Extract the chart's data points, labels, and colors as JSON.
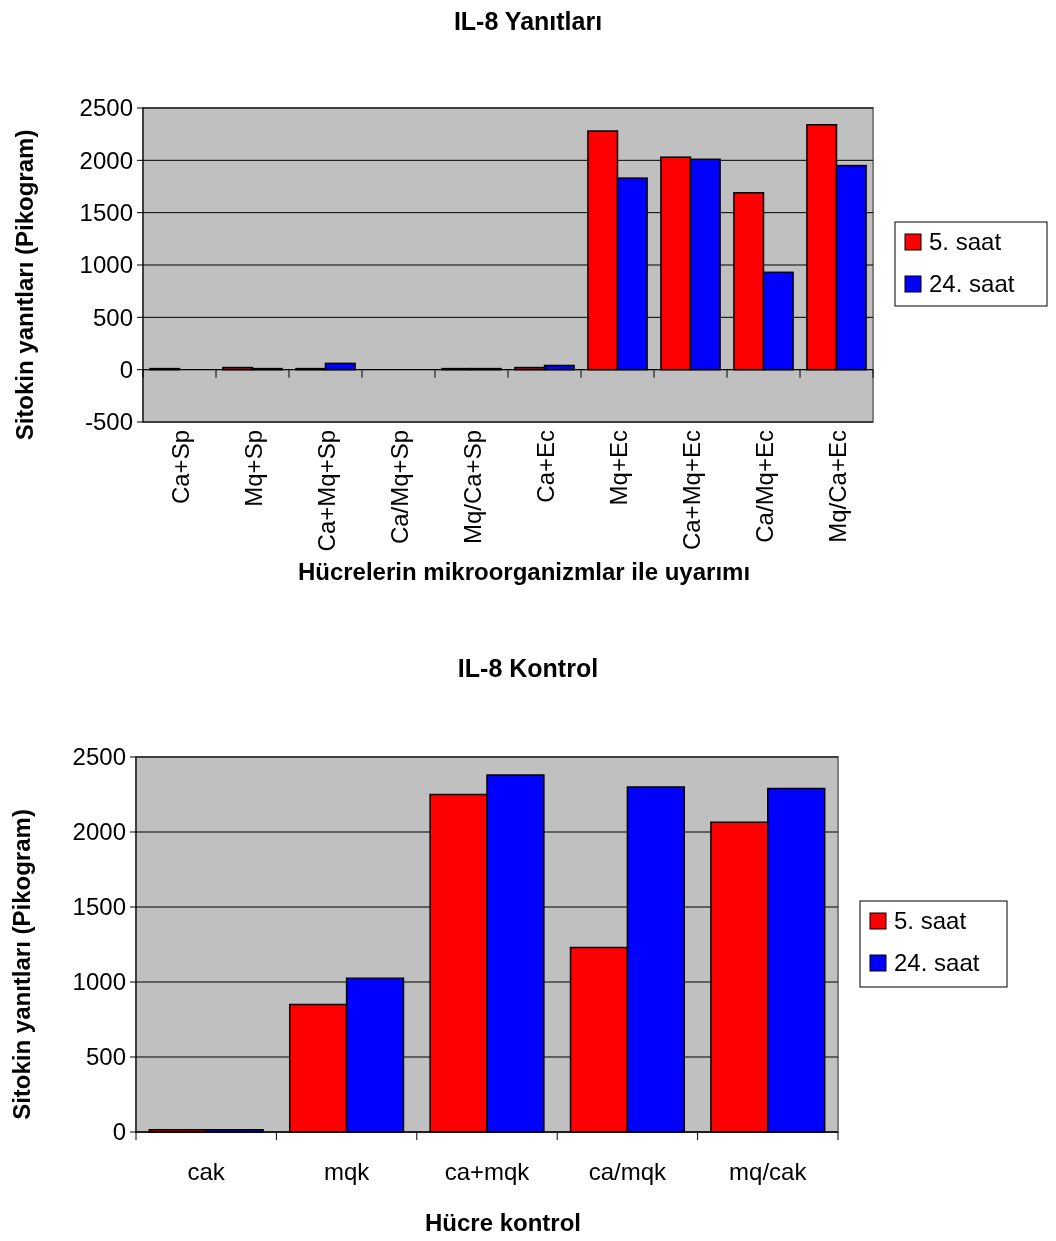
{
  "chart_data": [
    {
      "type": "bar",
      "title": "IL-8 Yanıtları",
      "xlabel": "Hücrelerin mikroorganizmlar ile uyarımı",
      "ylabel": "Sitokin yanıtları (Pikogram)",
      "categories": [
        "Ca+Sp",
        "Mq+Sp",
        "Ca+Mq+Sp",
        "Ca/Mq+Sp",
        "Mq/Ca+Sp",
        "Ca+Ec",
        "Mq+Ec",
        "Ca+Mq+Ec",
        "Ca/Mq+Ec",
        "Mq/Ca+Ec"
      ],
      "series": [
        {
          "name": "5. saat",
          "color": "#ff0000",
          "values": [
            10,
            20,
            10,
            0,
            10,
            20,
            2280,
            2030,
            1690,
            2340
          ]
        },
        {
          "name": "24. saat",
          "color": "#0000ff",
          "values": [
            0,
            10,
            60,
            0,
            10,
            40,
            1830,
            2010,
            930,
            1950
          ]
        }
      ],
      "ylim": [
        -500,
        2500
      ],
      "yticks": [
        -500,
        0,
        500,
        1000,
        1500,
        2000,
        2500
      ],
      "grid": "y",
      "legend": "right"
    },
    {
      "type": "bar",
      "title": "IL-8 Kontrol",
      "xlabel": "Hücre kontrol",
      "ylabel": "Sitokin yanıtları (Pikogram)",
      "categories": [
        "cak",
        "mqk",
        "ca+mqk",
        "ca/mqk",
        "mq/cak"
      ],
      "series": [
        {
          "name": "5. saat",
          "color": "#ff0000",
          "values": [
            15,
            850,
            2250,
            1230,
            2065
          ]
        },
        {
          "name": "24. saat",
          "color": "#0000ff",
          "values": [
            15,
            1025,
            2380,
            2300,
            2290
          ]
        }
      ],
      "ylim": [
        0,
        2500
      ],
      "yticks": [
        0,
        500,
        1000,
        1500,
        2000,
        2500
      ],
      "grid": "y",
      "legend": "right"
    }
  ]
}
